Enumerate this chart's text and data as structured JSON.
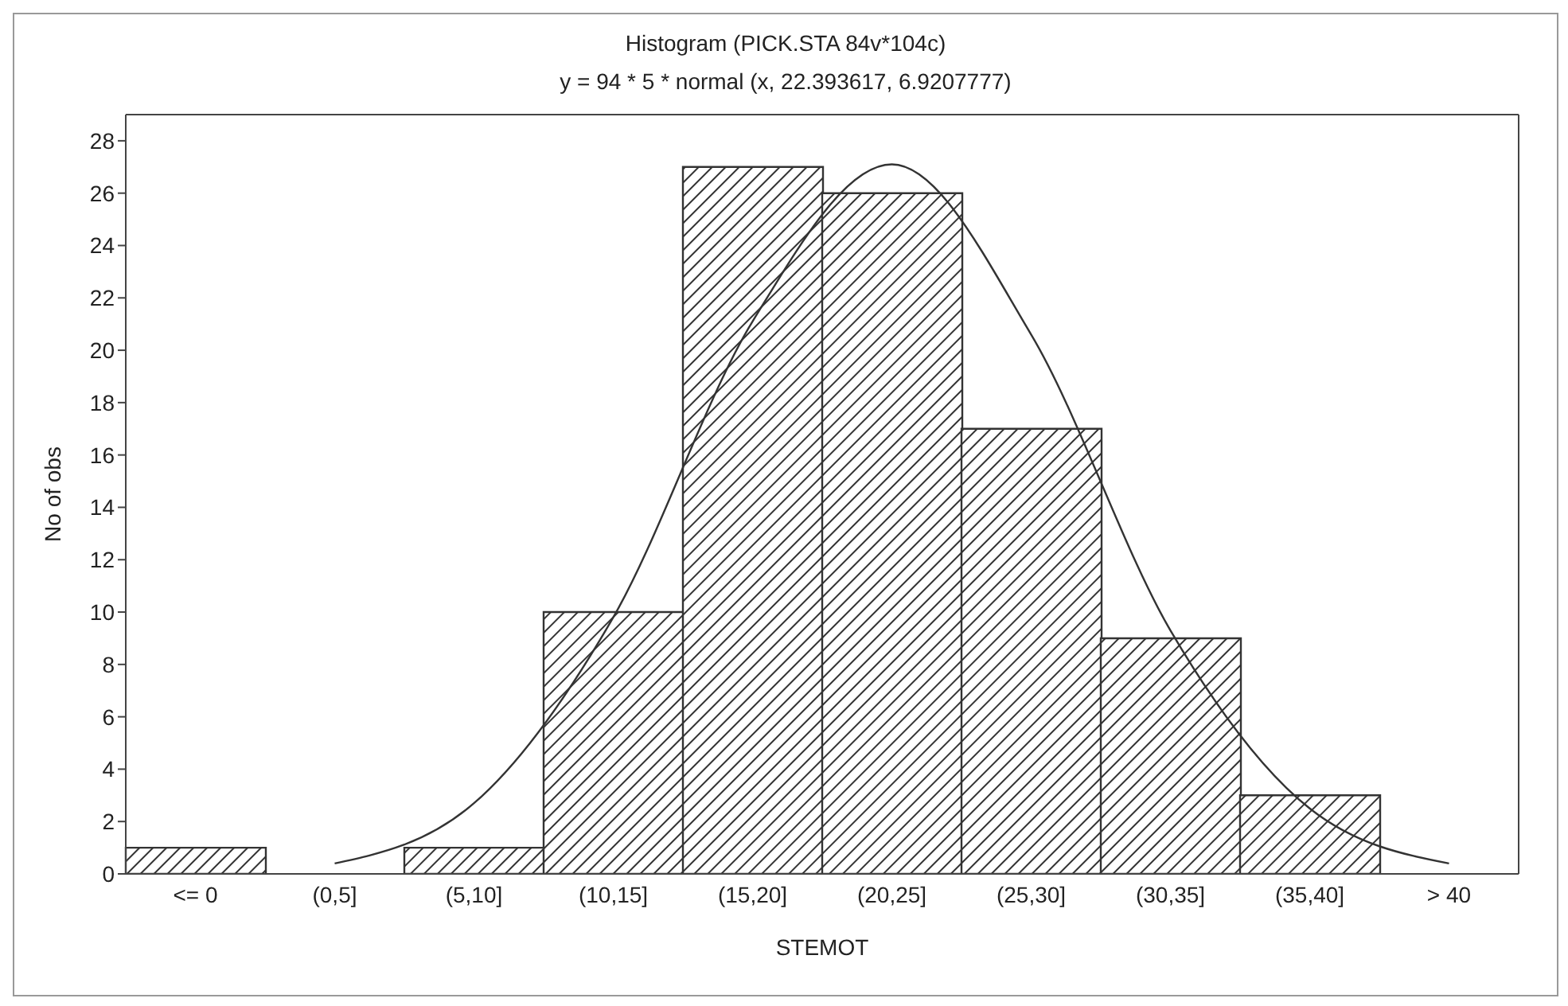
{
  "chart_data": {
    "type": "bar",
    "title": "Histogram (PICK.STA 84v*104c)",
    "subtitle": "y = 94 * 5 * normal (x, 22.393617, 6.9207777)",
    "xlabel": "STEMOT",
    "ylabel": "No of obs",
    "categories": [
      "<= 0",
      "(0,5]",
      "(5,10]",
      "(10,15]",
      "(15,20]",
      "(20,25]",
      "(25,30]",
      "(30,35]",
      "(35,40]",
      "> 40"
    ],
    "series": [
      {
        "color": "#333333",
        "values": [
          1,
          0,
          1,
          10,
          27,
          26,
          17,
          9,
          3,
          0
        ]
      },
      {
        "type": "line",
        "color": "#333333",
        "values": [
          null,
          0.4,
          2.7,
          9.8,
          21.1,
          27.1,
          20.6,
          9.3,
          2.5,
          0.4
        ]
      }
    ],
    "ylim": [
      0,
      29
    ],
    "yticks": [
      0,
      2,
      4,
      6,
      8,
      10,
      12,
      14,
      16,
      18,
      20,
      22,
      24,
      26,
      28
    ],
    "grid": false
  }
}
